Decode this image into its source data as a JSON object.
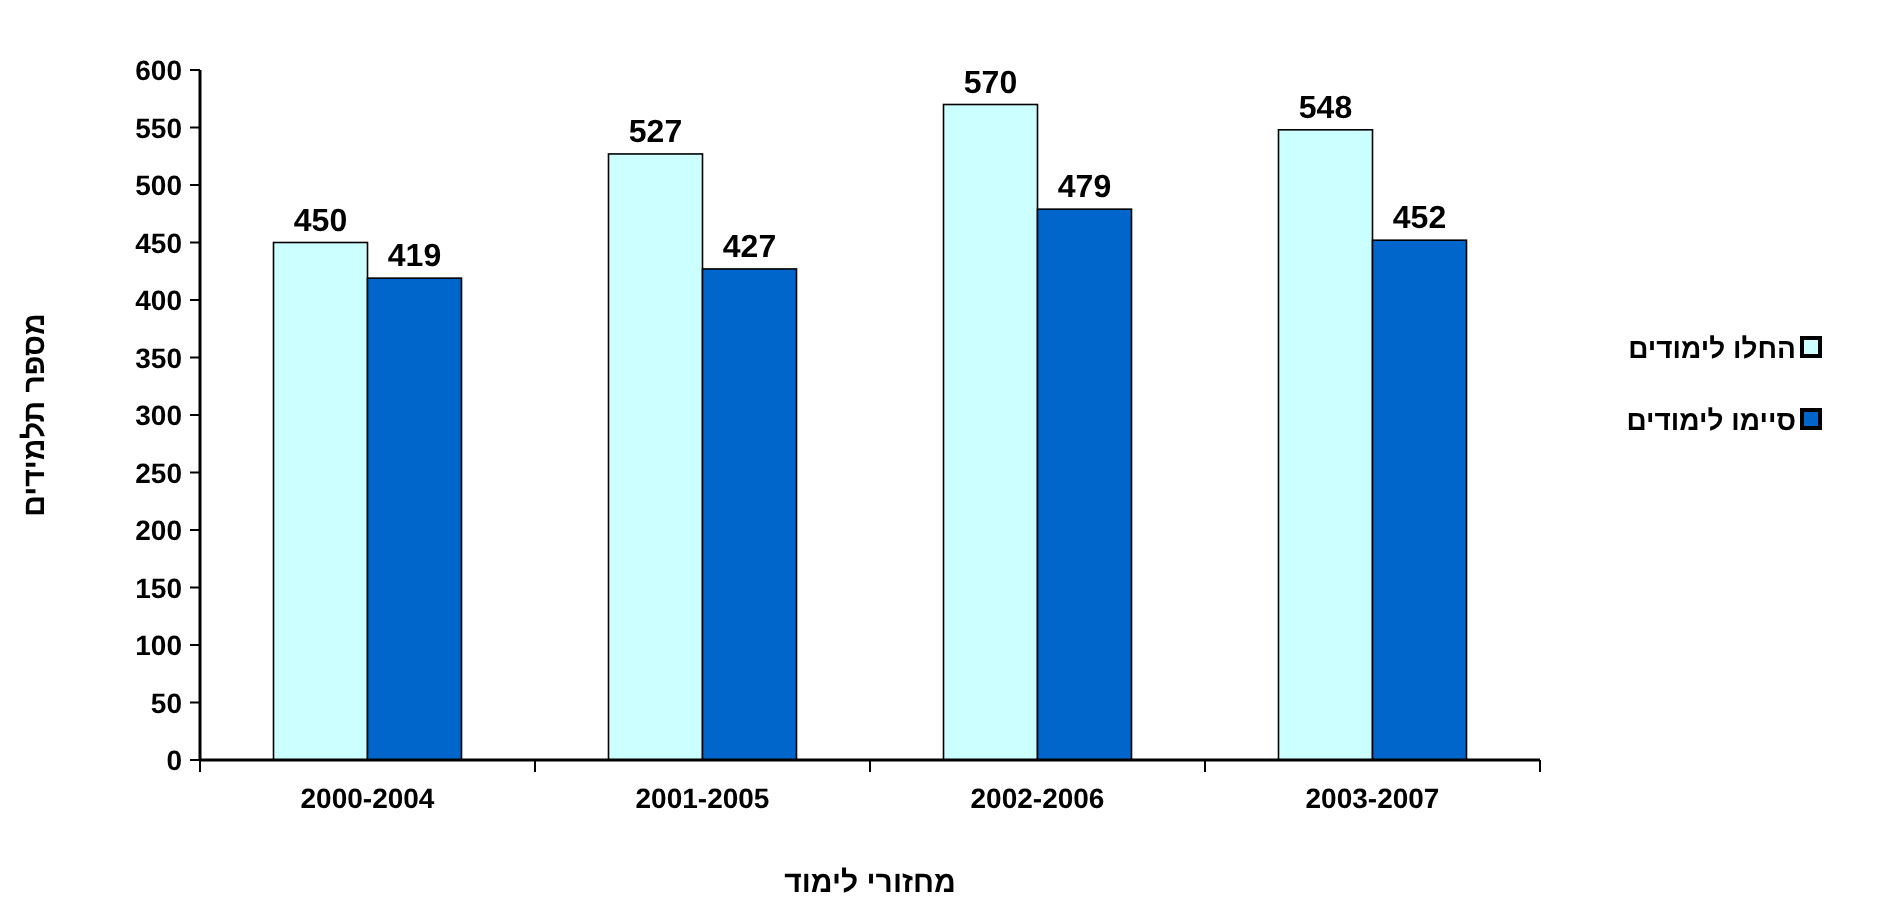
{
  "chart_data": {
    "type": "bar",
    "xlabel": "מחזורי לימוד",
    "ylabel": "מספר תלמידים",
    "categories": [
      "2000-2004",
      "2001-2005",
      "2002-2006",
      "2003-2007"
    ],
    "series": [
      {
        "name": "החלו לימודים",
        "color": "#ccffff",
        "values": [
          450,
          527,
          570,
          548
        ]
      },
      {
        "name": "סיימו לימודים",
        "color": "#0066cc",
        "values": [
          419,
          427,
          479,
          452
        ]
      }
    ],
    "ylim": [
      0,
      600
    ],
    "yticks": [
      0,
      50,
      100,
      150,
      200,
      250,
      300,
      350,
      400,
      450,
      500,
      550,
      600
    ],
    "data_labels": true,
    "legend": "right",
    "grid": false
  }
}
